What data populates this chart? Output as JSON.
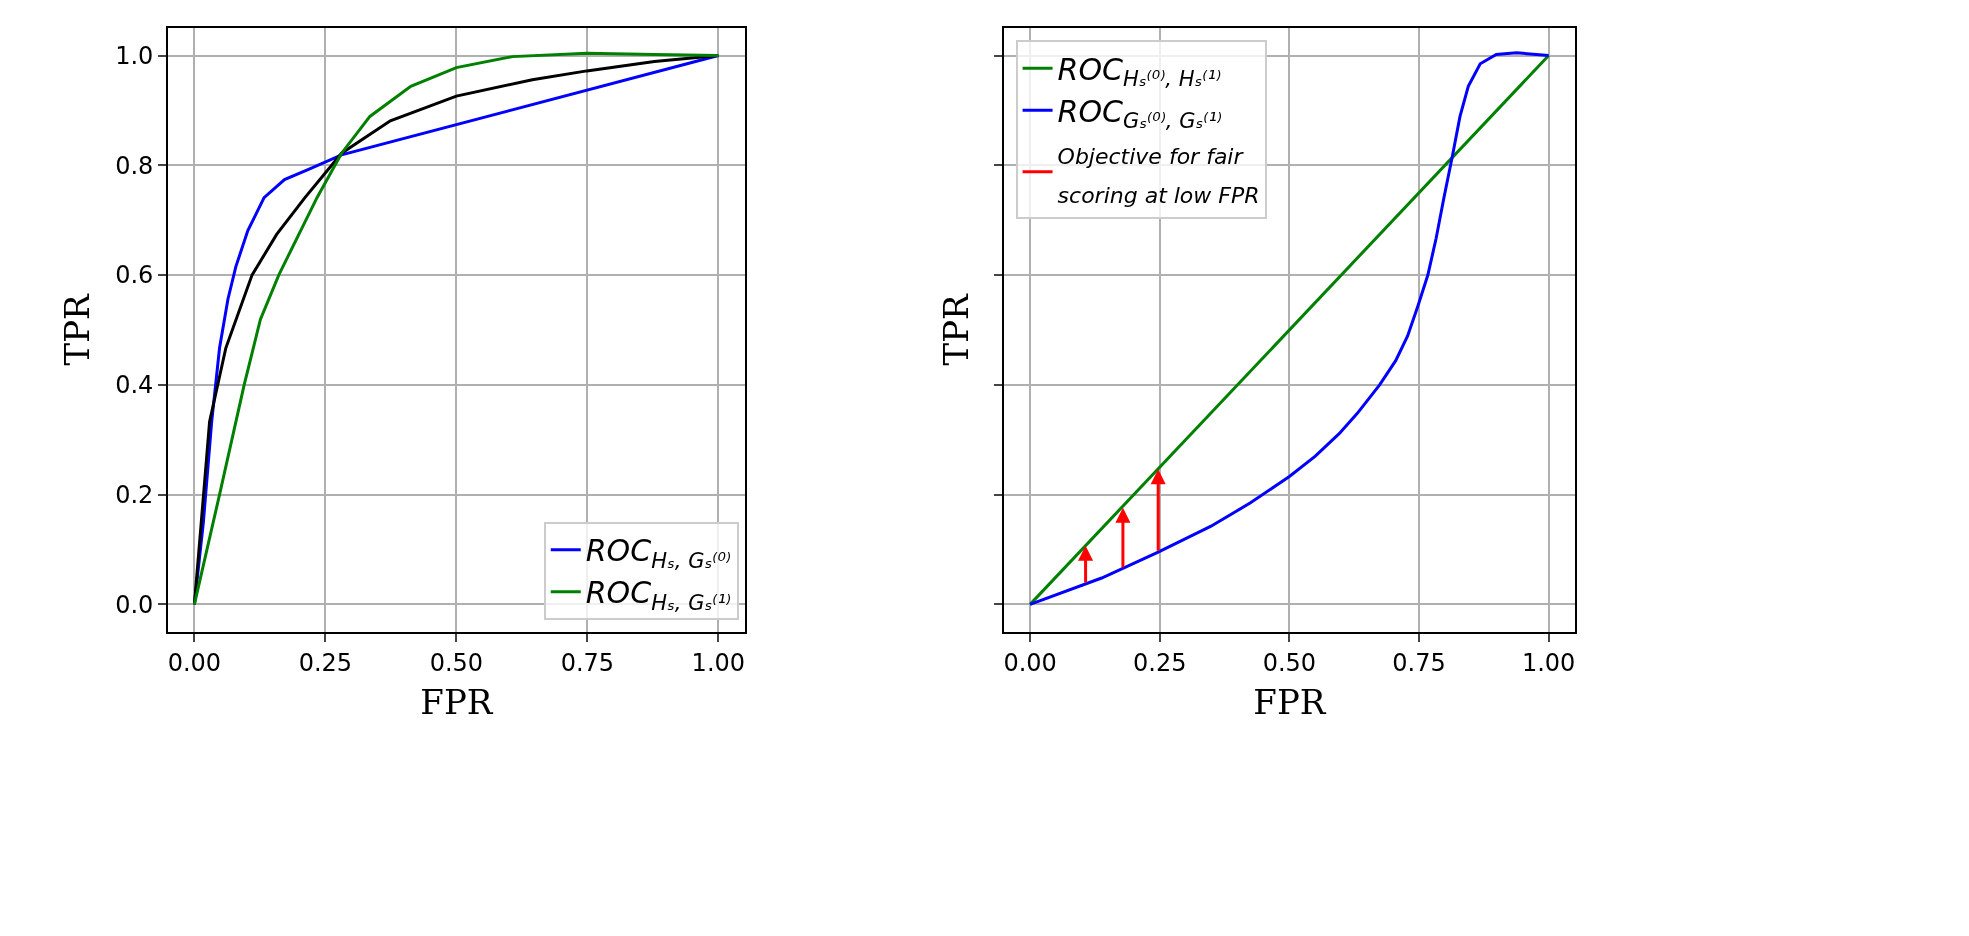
{
  "chart_data": [
    {
      "type": "line",
      "xlabel": "FPR",
      "ylabel": "TPR",
      "xlim": [
        -0.05,
        1.05
      ],
      "ylim": [
        -0.05,
        1.05
      ],
      "xticks": [
        {
          "value": 0,
          "label": "0.00"
        },
        {
          "value": 0.25,
          "label": "0.25"
        },
        {
          "value": 0.5,
          "label": "0.50"
        },
        {
          "value": 0.75,
          "label": "0.75"
        },
        {
          "value": 1,
          "label": "1.00"
        }
      ],
      "yticks": [
        {
          "value": 0,
          "label": "0.0"
        },
        {
          "value": 0.2,
          "label": "0.2"
        },
        {
          "value": 0.4,
          "label": "0.4"
        },
        {
          "value": 0.6,
          "label": "0.6"
        },
        {
          "value": 0.8,
          "label": "0.8"
        },
        {
          "value": 1,
          "label": "1.0"
        }
      ],
      "grid": true,
      "legend": "bottom right",
      "series": [
        {
          "name": "ROC$_{Hₛ, Gₛ⁽⁰⁾}$",
          "color": "#0000ff",
          "x": [
            0,
            0.017,
            0.033,
            0.048,
            0.064,
            0.079,
            0.102,
            0.133,
            0.172,
            0.219,
            0.281,
            1
          ],
          "values": [
            0,
            0.148,
            0.333,
            0.467,
            0.556,
            0.615,
            0.681,
            0.741,
            0.774,
            0.793,
            0.819,
            1
          ]
        },
        {
          "color": "#000000",
          "x": [
            0,
            0.013,
            0.029,
            0.06,
            0.11,
            0.157,
            0.211,
            0.281,
            0.374,
            0.5,
            0.645,
            0.749,
            0.878,
            1
          ],
          "values": [
            0,
            0.148,
            0.333,
            0.467,
            0.6,
            0.674,
            0.741,
            0.822,
            0.881,
            0.926,
            0.956,
            0.972,
            0.989,
            1
          ]
        },
        {
          "name": "ROC$_{Hₛ, Gₛ⁽¹⁾}$",
          "color": "#008000",
          "x": [
            0,
            0.048,
            0.095,
            0.126,
            0.161,
            0.234,
            0.281,
            0.335,
            0.413,
            0.5,
            0.607,
            0.749,
            0.878,
            1
          ],
          "values": [
            0,
            0.2,
            0.4,
            0.519,
            0.6,
            0.741,
            0.822,
            0.889,
            0.944,
            0.978,
            0.998,
            1.004,
            1.002,
            1
          ]
        }
      ]
    },
    {
      "type": "line",
      "xlabel": "FPR",
      "ylabel": "TPR",
      "xlim": [
        -0.05,
        1.05
      ],
      "ylim": [
        -0.05,
        1.05
      ],
      "xticks": [
        {
          "value": 0,
          "label": "0.00"
        },
        {
          "value": 0.25,
          "label": "0.25"
        },
        {
          "value": 0.5,
          "label": "0.50"
        },
        {
          "value": 0.75,
          "label": "0.75"
        },
        {
          "value": 1,
          "label": "1.00"
        }
      ],
      "yticks": [
        0,
        0.2,
        0.4,
        0.6,
        0.8,
        1
      ],
      "tick_labels": "x",
      "grid": true,
      "legend": "top left",
      "series": [
        {
          "name": "ROC$_{Hₛ⁽⁰⁾, Hₛ⁽¹⁾}$",
          "color": "#008000",
          "x": [
            0,
            1
          ],
          "values": [
            0,
            1
          ]
        },
        {
          "name": "ROC$_{Gₛ⁽⁰⁾, Gₛ⁽¹⁾}$",
          "color": "#0000ff",
          "x": [
            0,
            0.138,
            0.247,
            0.348,
            0.425,
            0.5,
            0.55,
            0.596,
            0.631,
            0.674,
            0.705,
            0.728,
            0.748,
            0.767,
            0.783,
            0.798,
            0.814,
            0.829,
            0.845,
            0.868,
            0.899,
            0.938,
            1
          ],
          "values": [
            0,
            0.048,
            0.095,
            0.142,
            0.185,
            0.233,
            0.27,
            0.311,
            0.348,
            0.4,
            0.444,
            0.489,
            0.544,
            0.6,
            0.667,
            0.741,
            0.815,
            0.889,
            0.944,
            0.985,
            1.002,
            1.005,
            1
          ]
        }
      ],
      "annotations": [
        "Objective for fair scoring at low FPR"
      ]
    }
  ]
}
